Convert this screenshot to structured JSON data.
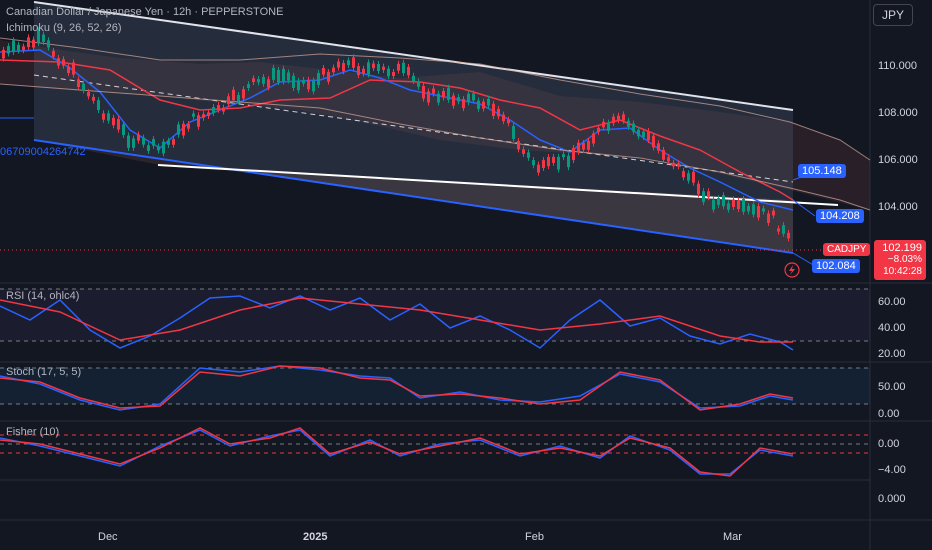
{
  "header": {
    "symbol_line": "Canadian Dollar / Japanese Yen · 12h · PEPPERSTONE",
    "ichimoku_label": "Ichimoku (9, 26, 52, 26)",
    "trendline_value": "06709004264742",
    "currency_button": "JPY"
  },
  "price_axis": {
    "ticks": [
      "110.000",
      "108.000",
      "106.000",
      "104.000"
    ]
  },
  "price_labels": {
    "level_1": "105.148",
    "level_2": "104.208",
    "level_3": "102.084"
  },
  "current_price": {
    "symbol": "CADJPY",
    "price": "102.199",
    "change": "−8.03%",
    "countdown": "10:42:28"
  },
  "indicators": {
    "rsi": {
      "label": "RSI (14, ohlc4)",
      "ticks": [
        "60.00",
        "40.00",
        "20.00"
      ]
    },
    "stoch": {
      "label": "Stoch (17, 5, 5)",
      "ticks": [
        "50.00",
        "0.00"
      ]
    },
    "fisher": {
      "label": "Fisher (10)",
      "ticks": [
        "0.00",
        "−4.00",
        "0.000"
      ]
    }
  },
  "time_axis": {
    "ticks": [
      "Dec",
      "2025",
      "Feb",
      "Mar"
    ]
  },
  "colors": {
    "background": "#131722",
    "bull": "#089981",
    "bear": "#f23645",
    "blue": "#2962ff",
    "red_line": "#f23645"
  }
}
